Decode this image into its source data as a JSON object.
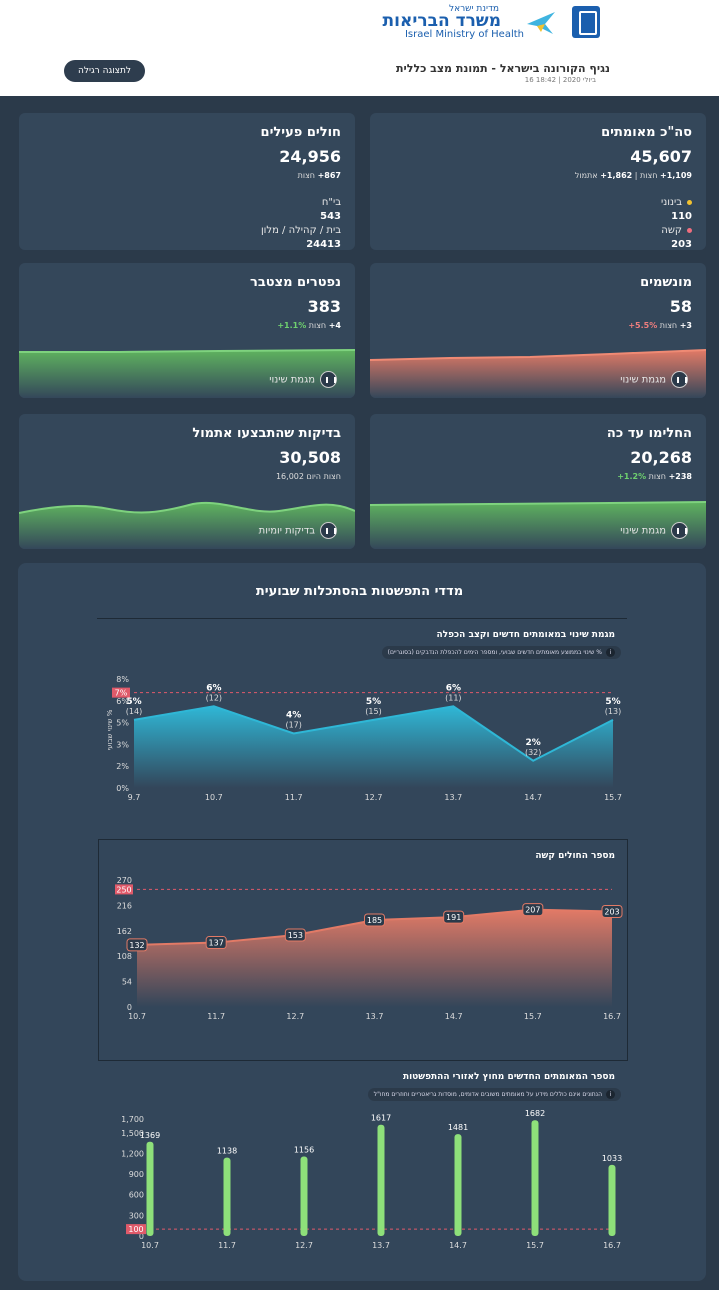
{
  "header": {
    "logo_top": "מדינת ישראל",
    "logo_main": "משרד הבריאות",
    "logo_en": "Israel Ministry of Health",
    "title": "נגיף הקורונה בישראל - תמונת מצב כללית",
    "timestamp": "16 ביולי 2020 | 18:42",
    "toggle_button": "לתצוגה רגילה"
  },
  "cards": {
    "confirmed": {
      "title": "סה\"כ מאומתים",
      "value": "45,607",
      "delta_a": "1,109+",
      "delta_b": "1,862+",
      "delta_label_a": "חצות",
      "delta_label_b": "אתמול",
      "sep": "|",
      "moderate_label": "בינוני",
      "moderate_value": "110",
      "severe_label": "קשה",
      "severe_value": "203"
    },
    "active": {
      "title": "חולים פעילים",
      "value": "24,956",
      "delta": "867+",
      "delta_label": "חצות",
      "hospital_label": "בי\"ח",
      "hospital_value": "543",
      "home_label": "בית / קהילה / מלון",
      "home_value": "24413"
    },
    "ventilated": {
      "title": "מונשמים",
      "value": "58",
      "delta": "3+",
      "delta_label": "חצות",
      "pct": "5.5%+",
      "trend": "מגמת שינוי"
    },
    "deceased": {
      "title": "נפטרים מצטבר",
      "value": "383",
      "delta": "4+",
      "delta_label": "חצות",
      "pct": "1.1%+",
      "trend": "מגמת שינוי"
    },
    "recovered": {
      "title": "החלימו עד כה",
      "value": "20,268",
      "delta": "238+",
      "delta_label": "חצות",
      "pct": "1.2%+",
      "trend": "מגמת שינוי"
    },
    "tests": {
      "title": "בדיקות שהתבצעו אתמול",
      "value": "30,508",
      "today": "16,002",
      "today_label": "היום",
      "delta_label": "חצות",
      "trend": "בדיקות יומיות"
    }
  },
  "panel": {
    "title": "מדדי התפשטות בהסתכלות שבועית",
    "chart1_title": "מגמת שינוי במאומתים חדשים וקצב הכפלה",
    "chart1_info": "% שינוי בממוצע מאומתים חדשים שבועי, ומספר הימים להכפלת הנדבקים (בסוגריים)",
    "chart1_ylabel": "שינוי שבועי %",
    "chart2_title": "מספר החולים קשה",
    "chart3_title": "מספר המאומתים החדשים מחוץ לאזורי ההתפשטות",
    "chart3_info": "הנתונים אינם כוללים מידע על מאומתים משובים אדומים, מוסדות גריאטריים וחוזרים מחו\"ל"
  },
  "chart_data": [
    {
      "type": "area",
      "categories": [
        "9.7",
        "10.7",
        "11.7",
        "12.7",
        "13.7",
        "14.7",
        "15.7"
      ],
      "values": [
        5,
        6,
        4,
        5,
        6,
        2,
        5
      ],
      "value_labels": [
        "5%",
        "6%",
        "4%",
        "5%",
        "6%",
        "2%",
        "5%"
      ],
      "doubling_days": [
        "(14)",
        "(12)",
        "(17)",
        "(15)",
        "(11)",
        "(32)",
        "(13)"
      ],
      "yticks": [
        "0%",
        "2%",
        "3%",
        "5%",
        "6%",
        "8%"
      ],
      "ylim": [
        0,
        8
      ],
      "threshold": 7,
      "threshold_label": "7%"
    },
    {
      "type": "area",
      "categories": [
        "10.7",
        "11.7",
        "12.7",
        "13.7",
        "14.7",
        "15.7",
        "16.7"
      ],
      "values": [
        132,
        137,
        153,
        185,
        191,
        207,
        203
      ],
      "yticks": [
        "0",
        "54",
        "108",
        "162",
        "216",
        "270"
      ],
      "ylim": [
        0,
        270
      ],
      "threshold": 250,
      "threshold_label": "250"
    },
    {
      "type": "bar",
      "categories": [
        "10.7",
        "11.7",
        "12.7",
        "13.7",
        "14.7",
        "15.7",
        "16.7"
      ],
      "values": [
        1369,
        1138,
        1156,
        1617,
        1481,
        1682,
        1033
      ],
      "yticks": [
        "0",
        "300",
        "600",
        "900",
        "1,200",
        "1,500",
        "1,700"
      ],
      "ylim": [
        0,
        1700
      ],
      "threshold": 100,
      "threshold_label": "100"
    }
  ],
  "colors": {
    "bg": "#2b3a4a",
    "card": "#34475a",
    "green": "#6fc26f",
    "red": "#e27a66",
    "cyan": "#2fb7d6",
    "bar": "#8ee07a"
  }
}
